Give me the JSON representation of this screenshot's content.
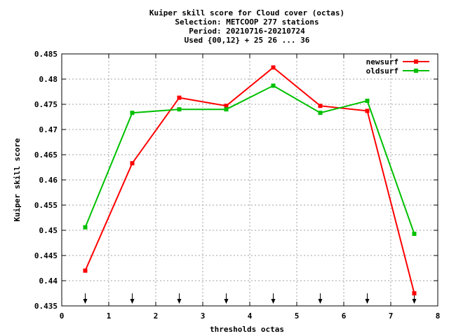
{
  "chart_data": {
    "type": "line",
    "title_lines": [
      "Kuiper skill score  for Cloud cover (octas)",
      "Selection: METCOOP    277 stations",
      "Period: 20210716-20210724",
      "Used {00,12} + 25 26 ... 36"
    ],
    "xlabel": "thresholds octas",
    "ylabel": "Kuiper skill score",
    "xlim": [
      0,
      8
    ],
    "ylim": [
      0.435,
      0.485
    ],
    "x_ticks": [
      0,
      1,
      2,
      3,
      4,
      5,
      6,
      7,
      8
    ],
    "x_tick_labels": [
      "0",
      "1",
      "2",
      "3",
      "4",
      "5",
      "6",
      "7",
      "8"
    ],
    "y_ticks": [
      0.435,
      0.44,
      0.445,
      0.45,
      0.455,
      0.46,
      0.465,
      0.47,
      0.475,
      0.48,
      0.485
    ],
    "y_tick_labels": [
      "0.435",
      "0.44",
      "0.445",
      "0.45",
      "0.455",
      "0.46",
      "0.465",
      "0.47",
      "0.475",
      "0.48",
      "0.485"
    ],
    "grid": true,
    "legend_position": "top-right",
    "marker_arrows_x": [
      0.5,
      1.5,
      2.5,
      3.5,
      4.5,
      5.5,
      6.5,
      7.5
    ],
    "x": [
      0.5,
      1.5,
      2.5,
      3.5,
      4.5,
      5.5,
      6.5,
      7.5
    ],
    "series": [
      {
        "name": "newsurf",
        "color": "#ff0000",
        "values": [
          0.442,
          0.4633,
          0.4763,
          0.4747,
          0.4823,
          0.4747,
          0.4737,
          0.4375
        ]
      },
      {
        "name": "oldsurf",
        "color": "#00c000",
        "values": [
          0.4506,
          0.4733,
          0.474,
          0.474,
          0.4787,
          0.4733,
          0.4757,
          0.4493
        ]
      }
    ]
  }
}
